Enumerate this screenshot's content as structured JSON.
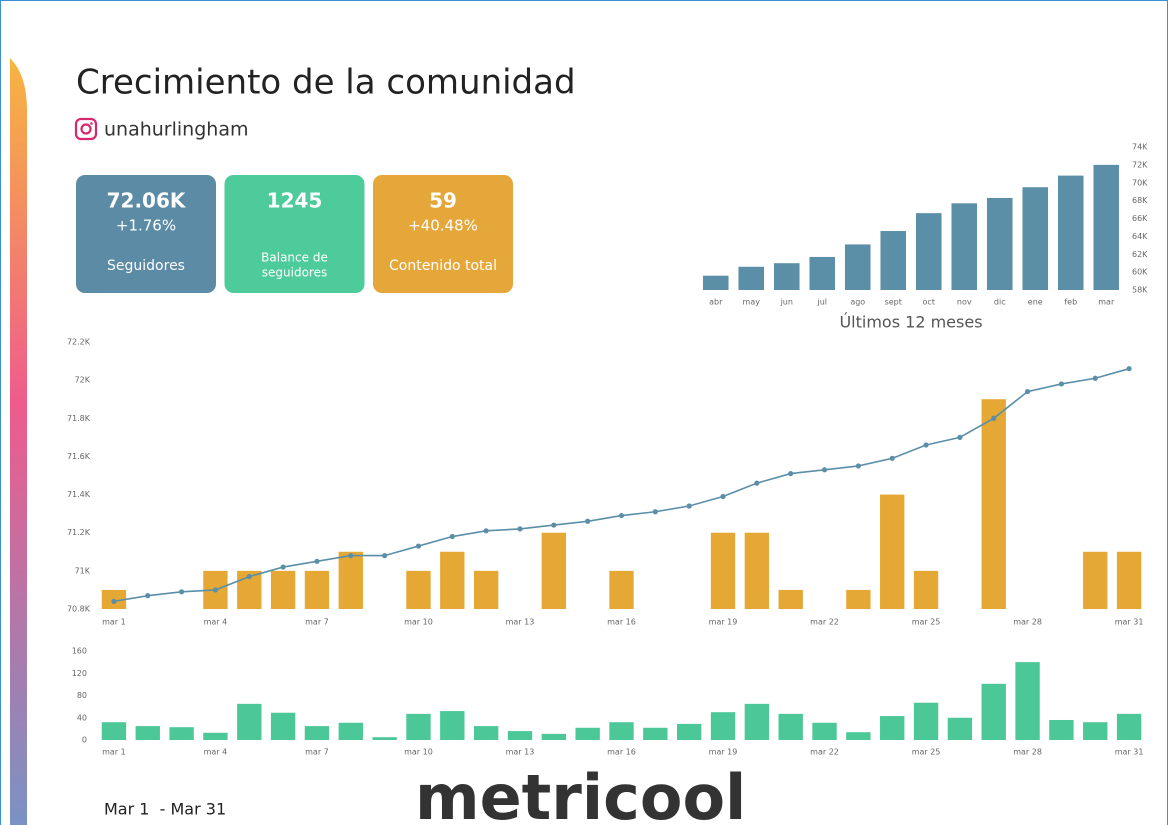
{
  "header": {
    "title": "Crecimiento de la comunidad",
    "account": "unahurlingham"
  },
  "kpis": [
    {
      "value": "72.06K",
      "change": "+1.76%",
      "label_lines": [
        "Seguidores"
      ],
      "color": "#5c8ba6"
    },
    {
      "value": "1245",
      "label_lines": [
        "Balance de",
        "seguidores"
      ],
      "color": "#4ecb9b"
    },
    {
      "value": "59",
      "change": "+40.48%",
      "label_lines": [
        "Contenido total"
      ],
      "color": "#e6a73a"
    }
  ],
  "footer": {
    "date_range": "Mar 1  - Mar 31",
    "logo": "metricool"
  },
  "chart_data": [
    {
      "type": "bar",
      "x_label": "Últimos 12 meses",
      "color": "#5b8fa8",
      "categories": [
        "abr",
        "may",
        "jun",
        "jul",
        "ago",
        "sept",
        "oct",
        "nov",
        "dic",
        "ene",
        "feb",
        "mar"
      ],
      "values": [
        59600,
        60600,
        61000,
        61700,
        63100,
        64600,
        66600,
        67700,
        68300,
        69500,
        70800,
        72000
      ],
      "ylim": [
        58000,
        74000
      ],
      "yticks": [
        {
          "value": 58000,
          "label": "58K"
        },
        {
          "value": 60000,
          "label": "60K"
        },
        {
          "value": 62000,
          "label": "62K"
        },
        {
          "value": 64000,
          "label": "64K"
        },
        {
          "value": 66000,
          "label": "66K"
        },
        {
          "value": 68000,
          "label": "68K"
        },
        {
          "value": 70000,
          "label": "70K"
        },
        {
          "value": 72000,
          "label": "72K"
        },
        {
          "value": 74000,
          "label": "74K"
        }
      ],
      "y_side": "right",
      "grid": false
    },
    {
      "type": "combo",
      "categories": [
        "mar 1",
        null,
        null,
        "mar 4",
        null,
        null,
        "mar 7",
        null,
        null,
        "mar 10",
        null,
        null,
        "mar 13",
        null,
        null,
        "mar 16",
        null,
        null,
        "mar 19",
        null,
        null,
        "mar 22",
        null,
        null,
        "mar 25",
        null,
        null,
        "mar 28",
        null,
        null,
        "mar 31"
      ],
      "series": [
        {
          "type": "bar",
          "axis": "y2",
          "color": "#e5a835",
          "values": [
            1,
            0,
            0,
            2,
            2,
            2,
            2,
            3,
            0,
            2,
            3,
            2,
            0,
            4,
            0,
            2,
            0,
            0,
            4,
            4,
            1,
            0,
            1,
            6,
            2,
            0,
            11,
            0,
            0,
            3,
            3
          ]
        },
        {
          "type": "line",
          "color": "#5b8fa8",
          "values": [
            70840,
            70870,
            70890,
            70900,
            70970,
            71020,
            71050,
            71080,
            71080,
            71130,
            71180,
            71210,
            71220,
            71240,
            71260,
            71290,
            71310,
            71340,
            71390,
            71460,
            71510,
            71530,
            71550,
            71590,
            71660,
            71700,
            71800,
            71940,
            71980,
            72010,
            72060
          ]
        }
      ],
      "ylim": [
        70800,
        72200
      ],
      "yticks": [
        {
          "value": 70800,
          "label": "70.8K"
        },
        {
          "value": 71000,
          "label": "71K"
        },
        {
          "value": 71200,
          "label": "71.2K"
        },
        {
          "value": 71400,
          "label": "71.4K"
        },
        {
          "value": 71600,
          "label": "71.6K"
        },
        {
          "value": 71800,
          "label": "71.8K"
        },
        {
          "value": 72000,
          "label": "72K"
        },
        {
          "value": 72200,
          "label": "72.2K"
        }
      ],
      "y2lim": [
        0,
        14
      ],
      "y_side": "left",
      "grid": false
    },
    {
      "type": "bar",
      "color": "#4cc797",
      "categories": [
        "mar 1",
        null,
        null,
        "mar 4",
        null,
        null,
        "mar 7",
        null,
        null,
        "mar 10",
        null,
        null,
        "mar 13",
        null,
        null,
        "mar 16",
        null,
        null,
        "mar 19",
        null,
        null,
        "mar 22",
        null,
        null,
        "mar 25",
        null,
        null,
        "mar 28",
        null,
        null,
        "mar 31"
      ],
      "values": [
        32,
        25,
        23,
        13,
        65,
        49,
        25,
        31,
        5,
        47,
        52,
        25,
        16,
        11,
        22,
        32,
        22,
        29,
        50,
        65,
        47,
        31,
        14,
        43,
        67,
        40,
        101,
        140,
        36,
        32,
        47
      ],
      "ylim": [
        0,
        160
      ],
      "yticks": [
        0,
        40,
        80,
        120,
        160
      ],
      "y_side": "left",
      "grid": false
    }
  ]
}
